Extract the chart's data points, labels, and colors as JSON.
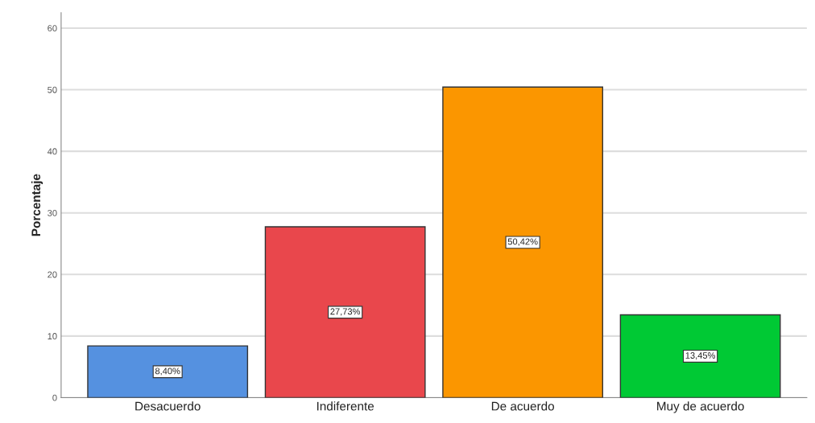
{
  "chart_data": {
    "type": "bar",
    "ylabel": "Porcentaje",
    "categories": [
      "Desacuerdo",
      "Indiferente",
      "De acuerdo",
      "Muy de acuerdo"
    ],
    "values": [
      8.4,
      27.73,
      50.42,
      13.45
    ],
    "value_labels": [
      "8,40%",
      "27,73%",
      "50,42%",
      "13,45%"
    ],
    "colors": [
      "#5591e0",
      "#e9474c",
      "#fb9600",
      "#00c934"
    ],
    "ylim": [
      0,
      62.5
    ],
    "yticks": [
      0,
      10,
      20,
      30,
      40,
      50,
      60
    ],
    "grid": "y"
  }
}
